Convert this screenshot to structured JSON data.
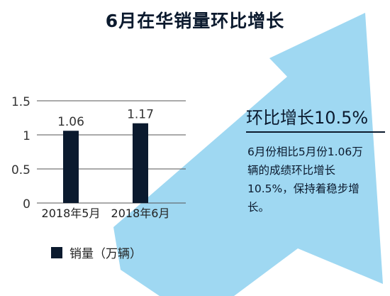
{
  "title": "6月在华销量环比增长",
  "headline": "环比增长10.5%",
  "body": "6月份相比5月份1.06万辆的成绩环比增长10.5%，保持着稳步增长。",
  "colors": {
    "bar": "#0b1a2e",
    "arrow": "#9fd8f2",
    "grid": "#555555"
  },
  "chart_data": {
    "type": "bar",
    "categories": [
      "2018年5月",
      "2018年6月"
    ],
    "series": [
      {
        "name": "销量（万辆）",
        "values": [
          1.06,
          1.17
        ]
      }
    ],
    "data_labels": [
      "1.06",
      "1.17"
    ],
    "yticks": [
      "0",
      "0.5",
      "1",
      "1.5"
    ],
    "ylim": [
      0,
      1.5
    ],
    "grid": true,
    "legend_position": "bottom-left",
    "title": "",
    "xlabel": "",
    "ylabel": ""
  }
}
